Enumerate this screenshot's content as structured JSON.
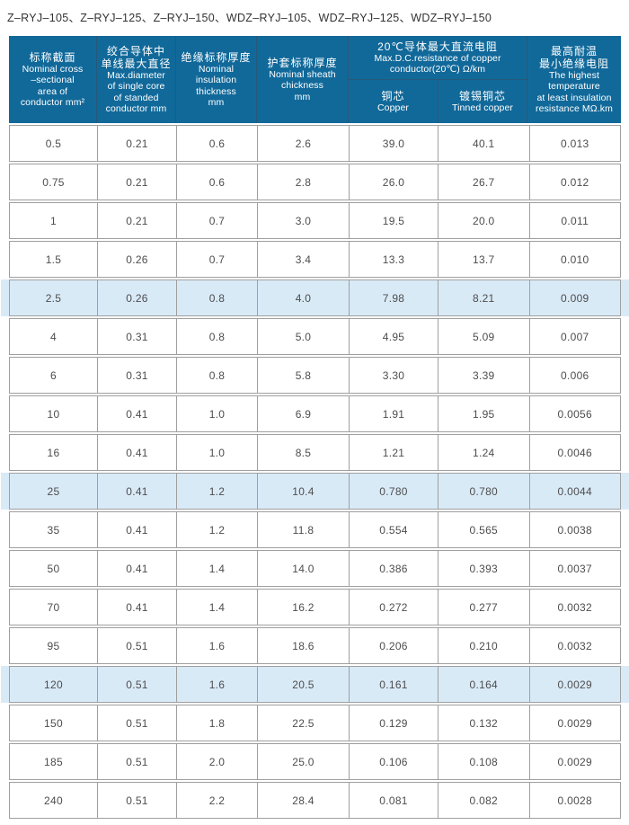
{
  "title": "Z–RYJ–105、Z–RYJ–125、Z–RYJ–150、WDZ–RYJ–105、WDZ–RYJ–125、WDZ–RYJ–150",
  "colors": {
    "header_bg": "#11699a",
    "header_divider": "#265a7b",
    "header_text": "#ffffff",
    "row_highlight": "#d9eaf7",
    "grid_border": "#9f9f9f",
    "cell_text": "#4d4d4d"
  },
  "table": {
    "header": {
      "nominal_cross_section": {
        "lines": [
          "标称截面",
          "Nominal cross",
          "–sectional",
          "area of",
          "conductor mm²"
        ]
      },
      "max_diameter": {
        "lines": [
          "绞合导体中",
          "单线最大直径",
          "Max.diameter",
          "of single core",
          "of standed",
          "conductor mm"
        ]
      },
      "insulation_thickness": {
        "lines": [
          "绝缘标称厚度",
          "Nominal",
          "insulation",
          "thickness",
          "mm"
        ]
      },
      "sheath_thickness": {
        "lines": [
          "护套标称厚度",
          "Nominal sheath",
          "chickness",
          "mm"
        ]
      },
      "dc_resistance": {
        "lines": [
          "20℃导体最大直流电阻",
          "Max.D.C.resistance of copper",
          "conductor(20℃) Ω/km"
        ],
        "copper": {
          "lines": [
            "铜芯",
            "Copper"
          ]
        },
        "tinned_copper": {
          "lines": [
            "镀锡铜芯",
            "Tinned copper"
          ]
        }
      },
      "insulation_resistance": {
        "lines": [
          "最高耐温",
          "最小绝缘电阻",
          "The highest",
          "temperature",
          "at least insulation",
          "resistance MΩ.km"
        ]
      }
    },
    "rows": [
      {
        "values": [
          "0.5",
          "0.21",
          "0.6",
          "2.6",
          "39.0",
          "40.1",
          "0.013"
        ],
        "highlighted": false
      },
      {
        "values": [
          "0.75",
          "0.21",
          "0.6",
          "2.8",
          "26.0",
          "26.7",
          "0.012"
        ],
        "highlighted": false
      },
      {
        "values": [
          "1",
          "0.21",
          "0.7",
          "3.0",
          "19.5",
          "20.0",
          "0.011"
        ],
        "highlighted": false
      },
      {
        "values": [
          "1.5",
          "0.26",
          "0.7",
          "3.4",
          "13.3",
          "13.7",
          "0.010"
        ],
        "highlighted": false
      },
      {
        "values": [
          "2.5",
          "0.26",
          "0.8",
          "4.0",
          "7.98",
          "8.21",
          "0.009"
        ],
        "highlighted": true
      },
      {
        "values": [
          "4",
          "0.31",
          "0.8",
          "5.0",
          "4.95",
          "5.09",
          "0.007"
        ],
        "highlighted": false
      },
      {
        "values": [
          "6",
          "0.31",
          "0.8",
          "5.8",
          "3.30",
          "3.39",
          "0.006"
        ],
        "highlighted": false
      },
      {
        "values": [
          "10",
          "0.41",
          "1.0",
          "6.9",
          "1.91",
          "1.95",
          "0.0056"
        ],
        "highlighted": false
      },
      {
        "values": [
          "16",
          "0.41",
          "1.0",
          "8.5",
          "1.21",
          "1.24",
          "0.0046"
        ],
        "highlighted": false
      },
      {
        "values": [
          "25",
          "0.41",
          "1.2",
          "10.4",
          "0.780",
          "0.780",
          "0.0044"
        ],
        "highlighted": true
      },
      {
        "values": [
          "35",
          "0.41",
          "1.2",
          "11.8",
          "0.554",
          "0.565",
          "0.0038"
        ],
        "highlighted": false
      },
      {
        "values": [
          "50",
          "0.41",
          "1.4",
          "14.0",
          "0.386",
          "0.393",
          "0.0037"
        ],
        "highlighted": false
      },
      {
        "values": [
          "70",
          "0.41",
          "1.4",
          "16.2",
          "0.272",
          "0.277",
          "0.0032"
        ],
        "highlighted": false
      },
      {
        "values": [
          "95",
          "0.51",
          "1.6",
          "18.6",
          "0.206",
          "0.210",
          "0.0032"
        ],
        "highlighted": false
      },
      {
        "values": [
          "120",
          "0.51",
          "1.6",
          "20.5",
          "0.161",
          "0.164",
          "0.0029"
        ],
        "highlighted": true
      },
      {
        "values": [
          "150",
          "0.51",
          "1.8",
          "22.5",
          "0.129",
          "0.132",
          "0.0029"
        ],
        "highlighted": false
      },
      {
        "values": [
          "185",
          "0.51",
          "2.0",
          "25.0",
          "0.106",
          "0.108",
          "0.0029"
        ],
        "highlighted": false
      },
      {
        "values": [
          "240",
          "0.51",
          "2.2",
          "28.4",
          "0.081",
          "0.082",
          "0.0028"
        ],
        "highlighted": false
      }
    ]
  }
}
